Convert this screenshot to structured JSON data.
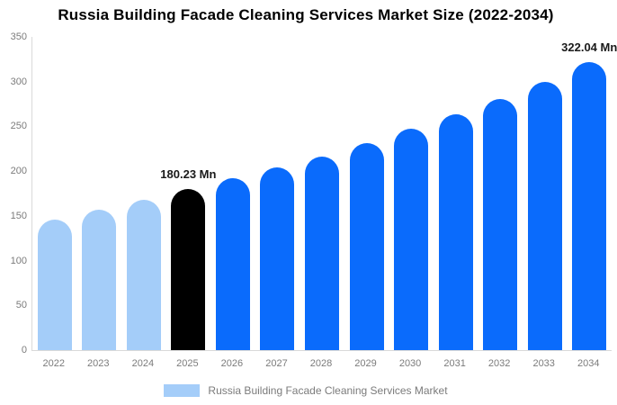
{
  "title": "Russia Building Facade Cleaning Services Market Size (2022-2034)",
  "chart_data": {
    "type": "bar",
    "title": "Russia Building Facade Cleaning Services Market Size (2022-2034)",
    "categories": [
      "2022",
      "2023",
      "2024",
      "2025",
      "2026",
      "2027",
      "2028",
      "2029",
      "2030",
      "2031",
      "2032",
      "2033",
      "2034"
    ],
    "series": [
      {
        "name": "Russia Building Facade Cleaning Services Market",
        "values": [
          146,
          157,
          168,
          180.23,
          192,
          204,
          216,
          231,
          247,
          264,
          281,
          300,
          322.04
        ]
      }
    ],
    "data_labels": [
      {
        "category": "2025",
        "text": "180.23 Mn"
      },
      {
        "category": "2034",
        "text": "322.04 Mn"
      }
    ],
    "xlabel": "",
    "ylabel": "",
    "ylim": [
      0,
      350
    ],
    "yticks": [
      0,
      50,
      100,
      150,
      200,
      250,
      300,
      350
    ],
    "grid": false,
    "legend_position": "bottom"
  },
  "legend": {
    "label": "Russia Building Facade Cleaning Services Market",
    "swatch_color": "#a4cdf9"
  },
  "colors": {
    "light_blue": "#a4cdf9",
    "highlight_black": "#000000",
    "blue": "#0a6bfc",
    "axis_line": "#d9d9d9",
    "tick_text": "#7b7b7b",
    "label_text": "#1a1a1a",
    "background": "#ffffff"
  },
  "bar_color_keys": [
    "light_blue",
    "light_blue",
    "light_blue",
    "highlight_black",
    "blue",
    "blue",
    "blue",
    "blue",
    "blue",
    "blue",
    "blue",
    "blue",
    "blue"
  ]
}
